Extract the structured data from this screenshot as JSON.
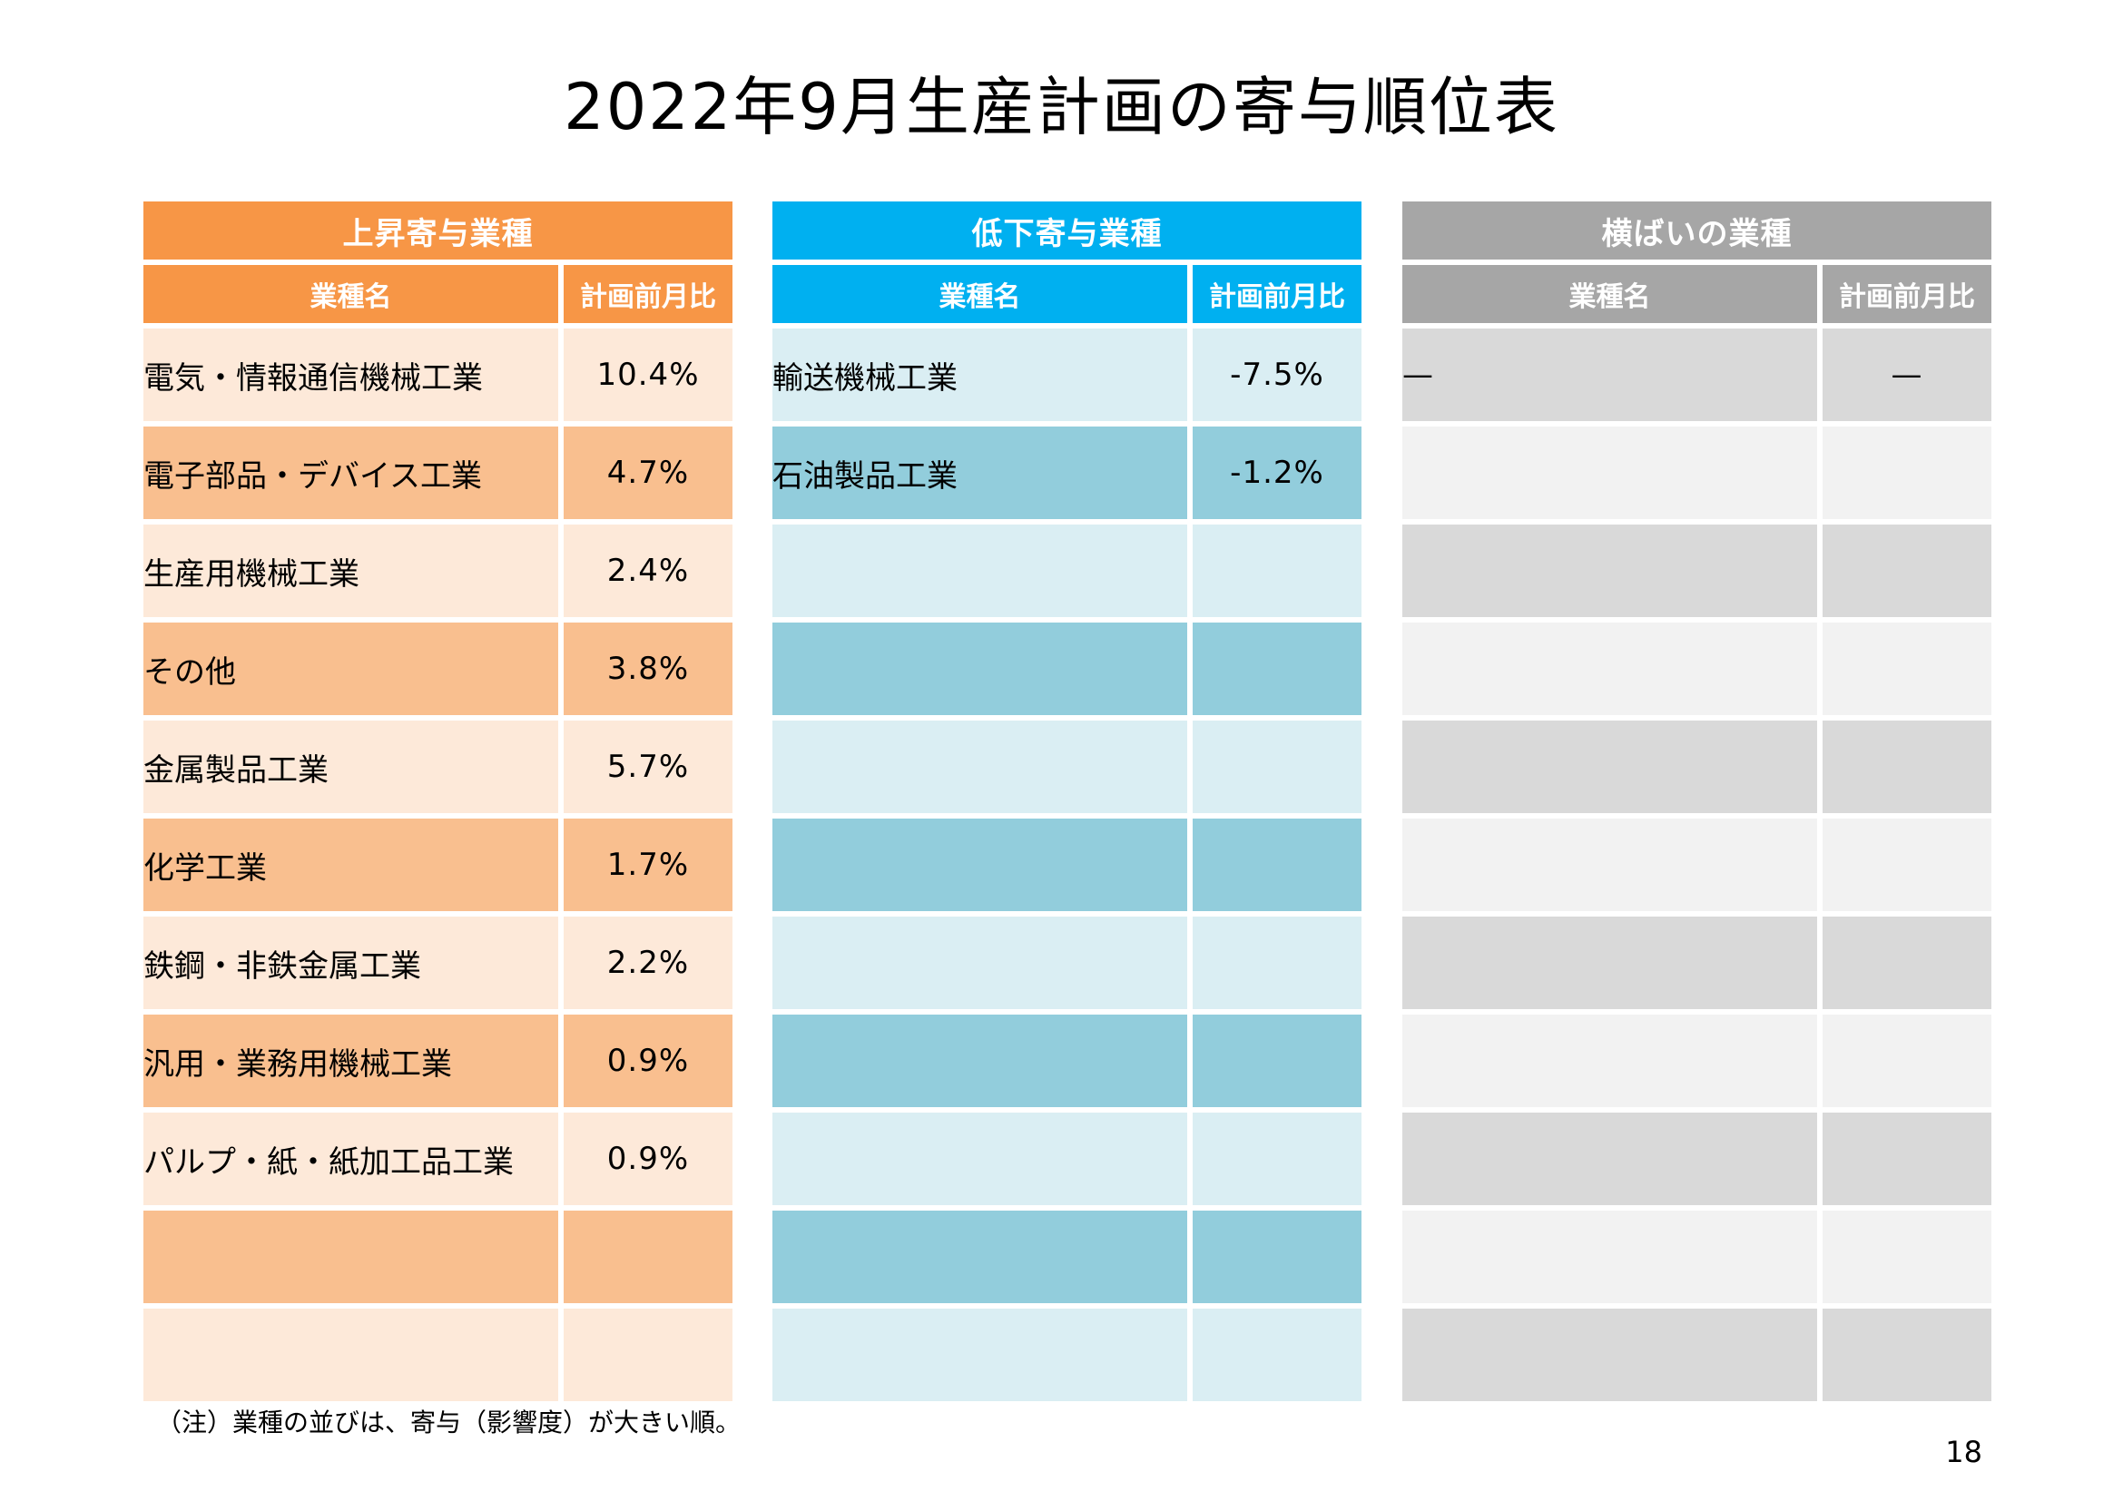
{
  "title": "2022年9月生産計画の寄与順位表",
  "tables": [
    {
      "key": "up",
      "title": "上昇寄与業種",
      "col_name": "業種名",
      "col_value": "計画前月比",
      "colors": {
        "header": "#F79646",
        "odd": "#FDE9D9",
        "even": "#F9BF8F"
      },
      "rows": [
        {
          "name": "電気・情報通信機械工業",
          "value": "10.4%"
        },
        {
          "name": "電子部品・デバイス工業",
          "value": "4.7%"
        },
        {
          "name": "生産用機械工業",
          "value": "2.4%"
        },
        {
          "name": "その他",
          "value": "3.8%"
        },
        {
          "name": "金属製品工業",
          "value": "5.7%"
        },
        {
          "name": "化学工業",
          "value": "1.7%"
        },
        {
          "name": "鉄鋼・非鉄金属工業",
          "value": "2.2%"
        },
        {
          "name": "汎用・業務用機械工業",
          "value": "0.9%"
        },
        {
          "name": "パルプ・紙・紙加工品工業",
          "value": "0.9%"
        },
        {
          "name": "",
          "value": ""
        },
        {
          "name": "",
          "value": ""
        }
      ]
    },
    {
      "key": "down",
      "title": "低下寄与業種",
      "col_name": "業種名",
      "col_value": "計画前月比",
      "colors": {
        "header": "#00B0F0",
        "odd": "#DAEEF3",
        "even": "#92CDDC"
      },
      "rows": [
        {
          "name": "輸送機械工業",
          "value": "-7.5%"
        },
        {
          "name": "石油製品工業",
          "value": "-1.2%"
        },
        {
          "name": "",
          "value": ""
        },
        {
          "name": "",
          "value": ""
        },
        {
          "name": "",
          "value": ""
        },
        {
          "name": "",
          "value": ""
        },
        {
          "name": "",
          "value": ""
        },
        {
          "name": "",
          "value": ""
        },
        {
          "name": "",
          "value": ""
        },
        {
          "name": "",
          "value": ""
        },
        {
          "name": "",
          "value": ""
        }
      ]
    },
    {
      "key": "flat",
      "title": "横ばいの業種",
      "col_name": "業種名",
      "col_value": "計画前月比",
      "colors": {
        "header": "#A6A6A6",
        "odd": "#D9D9D9",
        "even": "#F2F2F2"
      },
      "rows": [
        {
          "name": "—",
          "value": "—"
        },
        {
          "name": "",
          "value": ""
        },
        {
          "name": "",
          "value": ""
        },
        {
          "name": "",
          "value": ""
        },
        {
          "name": "",
          "value": ""
        },
        {
          "name": "",
          "value": ""
        },
        {
          "name": "",
          "value": ""
        },
        {
          "name": "",
          "value": ""
        },
        {
          "name": "",
          "value": ""
        },
        {
          "name": "",
          "value": ""
        },
        {
          "name": "",
          "value": ""
        }
      ]
    }
  ],
  "footnote": "（注）業種の並びは、寄与（影響度）が大きい順。",
  "page_number": "18"
}
